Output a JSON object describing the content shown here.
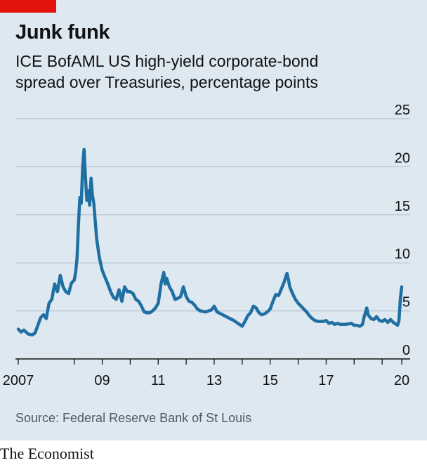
{
  "title": "Junk funk",
  "subtitle": [
    "ICE BofAML US high-yield corporate-bond",
    "spread over Treasuries, percentage points"
  ],
  "source": "Source: Federal Reserve Bank of St Louis",
  "brand": "The Economist",
  "colors": {
    "line": "#1f6fa3",
    "background": "#dde8f0",
    "accent": "#e3120b",
    "grid": "#b4c4cf"
  },
  "chart_data": {
    "type": "line",
    "title": "Junk funk",
    "ylabel": "percentage points",
    "ylim": [
      0,
      25
    ],
    "xlim": [
      2006.4,
      2020.5
    ],
    "y_ticks": [
      0,
      5,
      10,
      15,
      20,
      25
    ],
    "x_ticks": [
      {
        "value": 2006.5,
        "label": "2007"
      },
      {
        "value": 2008.5,
        "label": ""
      },
      {
        "value": 2009.5,
        "label": "09"
      },
      {
        "value": 2010.5,
        "label": ""
      },
      {
        "value": 2011.5,
        "label": "11"
      },
      {
        "value": 2012.5,
        "label": ""
      },
      {
        "value": 2013.5,
        "label": "13"
      },
      {
        "value": 2014.5,
        "label": ""
      },
      {
        "value": 2015.5,
        "label": "15"
      },
      {
        "value": 2016.5,
        "label": ""
      },
      {
        "value": 2017.5,
        "label": "17"
      },
      {
        "value": 2018.5,
        "label": ""
      },
      {
        "value": 2019.5,
        "label": ""
      },
      {
        "value": 2020.2,
        "label": "20"
      }
    ],
    "grid": true,
    "series": [
      {
        "values": [
          [
            2006.5,
            3.1
          ],
          [
            2006.6,
            2.8
          ],
          [
            2006.7,
            3.0
          ],
          [
            2006.85,
            2.6
          ],
          [
            2007.0,
            2.5
          ],
          [
            2007.1,
            2.7
          ],
          [
            2007.2,
            3.5
          ],
          [
            2007.3,
            4.3
          ],
          [
            2007.4,
            4.6
          ],
          [
            2007.5,
            4.2
          ],
          [
            2007.6,
            5.8
          ],
          [
            2007.7,
            6.2
          ],
          [
            2007.8,
            7.8
          ],
          [
            2007.9,
            7.0
          ],
          [
            2008.0,
            8.7
          ],
          [
            2008.1,
            7.5
          ],
          [
            2008.2,
            7.0
          ],
          [
            2008.3,
            6.8
          ],
          [
            2008.4,
            7.9
          ],
          [
            2008.5,
            8.2
          ],
          [
            2008.55,
            9.0
          ],
          [
            2008.6,
            10.5
          ],
          [
            2008.65,
            14.0
          ],
          [
            2008.7,
            16.8
          ],
          [
            2008.75,
            16.2
          ],
          [
            2008.8,
            20.0
          ],
          [
            2008.85,
            21.8
          ],
          [
            2008.9,
            19.0
          ],
          [
            2008.95,
            16.5
          ],
          [
            2009.0,
            17.5
          ],
          [
            2009.05,
            16.0
          ],
          [
            2009.1,
            18.8
          ],
          [
            2009.15,
            17.0
          ],
          [
            2009.2,
            16.2
          ],
          [
            2009.3,
            12.5
          ],
          [
            2009.4,
            10.5
          ],
          [
            2009.5,
            9.2
          ],
          [
            2009.6,
            8.5
          ],
          [
            2009.7,
            7.8
          ],
          [
            2009.8,
            7.0
          ],
          [
            2009.9,
            6.4
          ],
          [
            2010.0,
            6.2
          ],
          [
            2010.1,
            7.2
          ],
          [
            2010.2,
            6.0
          ],
          [
            2010.3,
            7.5
          ],
          [
            2010.4,
            7.0
          ],
          [
            2010.5,
            7.0
          ],
          [
            2010.6,
            6.8
          ],
          [
            2010.7,
            6.2
          ],
          [
            2010.8,
            6.0
          ],
          [
            2010.9,
            5.5
          ],
          [
            2011.0,
            4.9
          ],
          [
            2011.1,
            4.8
          ],
          [
            2011.2,
            4.8
          ],
          [
            2011.3,
            5.0
          ],
          [
            2011.4,
            5.3
          ],
          [
            2011.5,
            5.8
          ],
          [
            2011.6,
            7.8
          ],
          [
            2011.7,
            9.0
          ],
          [
            2011.75,
            7.8
          ],
          [
            2011.8,
            8.4
          ],
          [
            2011.9,
            7.5
          ],
          [
            2012.0,
            7.0
          ],
          [
            2012.1,
            6.2
          ],
          [
            2012.2,
            6.3
          ],
          [
            2012.3,
            6.5
          ],
          [
            2012.4,
            7.5
          ],
          [
            2012.5,
            6.5
          ],
          [
            2012.6,
            6.0
          ],
          [
            2012.7,
            5.9
          ],
          [
            2012.8,
            5.6
          ],
          [
            2012.9,
            5.2
          ],
          [
            2013.0,
            5.0
          ],
          [
            2013.2,
            4.9
          ],
          [
            2013.4,
            5.1
          ],
          [
            2013.5,
            5.5
          ],
          [
            2013.6,
            4.9
          ],
          [
            2013.8,
            4.6
          ],
          [
            2014.0,
            4.3
          ],
          [
            2014.2,
            4.0
          ],
          [
            2014.4,
            3.6
          ],
          [
            2014.5,
            3.4
          ],
          [
            2014.6,
            3.9
          ],
          [
            2014.7,
            4.5
          ],
          [
            2014.8,
            4.8
          ],
          [
            2014.9,
            5.5
          ],
          [
            2015.0,
            5.3
          ],
          [
            2015.1,
            4.8
          ],
          [
            2015.2,
            4.6
          ],
          [
            2015.3,
            4.7
          ],
          [
            2015.4,
            4.9
          ],
          [
            2015.5,
            5.2
          ],
          [
            2015.6,
            6.0
          ],
          [
            2015.7,
            6.7
          ],
          [
            2015.8,
            6.6
          ],
          [
            2015.9,
            7.3
          ],
          [
            2016.0,
            8.0
          ],
          [
            2016.1,
            8.9
          ],
          [
            2016.15,
            8.3
          ],
          [
            2016.2,
            7.5
          ],
          [
            2016.3,
            6.8
          ],
          [
            2016.4,
            6.2
          ],
          [
            2016.5,
            5.8
          ],
          [
            2016.6,
            5.5
          ],
          [
            2016.7,
            5.2
          ],
          [
            2016.8,
            4.9
          ],
          [
            2016.9,
            4.5
          ],
          [
            2017.0,
            4.2
          ],
          [
            2017.1,
            4.0
          ],
          [
            2017.2,
            3.9
          ],
          [
            2017.4,
            3.9
          ],
          [
            2017.5,
            4.0
          ],
          [
            2017.6,
            3.7
          ],
          [
            2017.7,
            3.8
          ],
          [
            2017.8,
            3.6
          ],
          [
            2017.9,
            3.7
          ],
          [
            2018.0,
            3.6
          ],
          [
            2018.2,
            3.6
          ],
          [
            2018.4,
            3.7
          ],
          [
            2018.5,
            3.5
          ],
          [
            2018.6,
            3.5
          ],
          [
            2018.7,
            3.4
          ],
          [
            2018.8,
            3.6
          ],
          [
            2018.85,
            4.3
          ],
          [
            2018.95,
            5.3
          ],
          [
            2019.0,
            4.6
          ],
          [
            2019.1,
            4.2
          ],
          [
            2019.2,
            4.1
          ],
          [
            2019.3,
            4.4
          ],
          [
            2019.4,
            4.0
          ],
          [
            2019.5,
            3.9
          ],
          [
            2019.6,
            4.1
          ],
          [
            2019.7,
            3.8
          ],
          [
            2019.8,
            4.1
          ],
          [
            2019.9,
            3.8
          ],
          [
            2020.0,
            3.6
          ],
          [
            2020.05,
            3.5
          ],
          [
            2020.1,
            4.0
          ],
          [
            2020.15,
            6.2
          ],
          [
            2020.2,
            7.5
          ]
        ]
      }
    ]
  }
}
